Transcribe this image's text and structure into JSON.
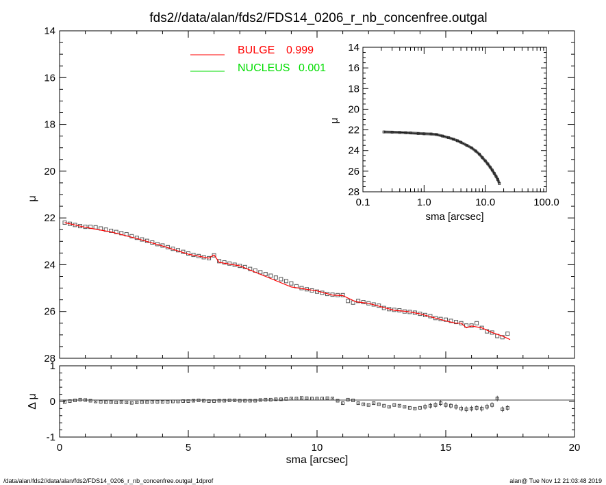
{
  "header": {
    "title": "fds2//data/alan/fds2/FDS14_0206_r_nb_concenfree.outgal"
  },
  "footer": {
    "left": "/data/alan/fds2//data/alan/fds2/FDS14_0206_r_nb_concenfree.outgal_1dprof",
    "right": "alan@  Tue Nov 12 21:03:48 2019"
  },
  "colors": {
    "bulge": "#ff0000",
    "nucleus": "#00dd00",
    "data": "#888888"
  },
  "chart_data": [
    {
      "id": "main",
      "type": "scatter",
      "xlabel": "",
      "ylabel": "μ",
      "xlim": [
        0,
        20
      ],
      "ylim": [
        28,
        14
      ],
      "x_inverted": false,
      "y_inverted": true,
      "x_ticks": [
        "0",
        "5",
        "10",
        "15",
        "20"
      ],
      "y_ticks": [
        "14",
        "16",
        "18",
        "20",
        "22",
        "24",
        "26",
        "28"
      ],
      "legend": {
        "placement": "top-center",
        "entries": [
          {
            "name": "BULGE",
            "value": "0.999",
            "color": "#ff0000"
          },
          {
            "name": "NUCLEUS",
            "value": "0.001",
            "color": "#00dd00"
          }
        ]
      },
      "series": [
        {
          "name": "data",
          "x": [
            0.2,
            0.4,
            0.6,
            0.8,
            1.0,
            1.2,
            1.4,
            1.6,
            1.8,
            2.0,
            2.2,
            2.4,
            2.6,
            2.8,
            3.0,
            3.2,
            3.4,
            3.6,
            3.8,
            4.0,
            4.2,
            4.4,
            4.6,
            4.8,
            5.0,
            5.2,
            5.4,
            5.6,
            5.8,
            6.0,
            6.2,
            6.4,
            6.6,
            6.8,
            7.0,
            7.2,
            7.4,
            7.6,
            7.8,
            8.0,
            8.2,
            8.4,
            8.6,
            8.8,
            9.0,
            9.2,
            9.4,
            9.6,
            9.8,
            10.0,
            10.2,
            10.4,
            10.6,
            10.8,
            11.0,
            11.2,
            11.4,
            11.6,
            11.8,
            12.0,
            12.2,
            12.4,
            12.6,
            12.8,
            13.0,
            13.2,
            13.4,
            13.6,
            13.8,
            14.0,
            14.2,
            14.4,
            14.6,
            14.8,
            15.0,
            15.2,
            15.4,
            15.6,
            15.8,
            16.0,
            16.2,
            16.4,
            16.6,
            16.8,
            17.0,
            17.2,
            17.4
          ],
          "y": [
            22.2,
            22.25,
            22.3,
            22.35,
            22.38,
            22.38,
            22.4,
            22.45,
            22.5,
            22.55,
            22.6,
            22.65,
            22.7,
            22.78,
            22.85,
            22.92,
            22.98,
            23.05,
            23.12,
            23.18,
            23.25,
            23.32,
            23.38,
            23.45,
            23.52,
            23.58,
            23.63,
            23.68,
            23.72,
            23.6,
            23.85,
            23.9,
            23.95,
            24.0,
            24.05,
            24.1,
            24.18,
            24.25,
            24.32,
            24.4,
            24.47,
            24.55,
            24.62,
            24.7,
            24.8,
            24.92,
            25.0,
            25.05,
            25.1,
            25.15,
            25.2,
            25.25,
            25.28,
            25.3,
            25.3,
            25.55,
            25.62,
            25.55,
            25.6,
            25.65,
            25.7,
            25.75,
            25.85,
            25.9,
            25.93,
            25.95,
            26.0,
            26.02,
            26.05,
            26.1,
            26.15,
            26.2,
            26.28,
            26.32,
            26.35,
            26.4,
            26.45,
            26.5,
            26.6,
            26.6,
            26.5,
            26.7,
            26.85,
            26.9,
            27.05,
            27.1,
            26.95
          ]
        },
        {
          "name": "BULGE",
          "x": [
            0.2,
            1.0,
            2.0,
            3.0,
            4.0,
            5.0,
            5.8,
            6.0,
            6.2,
            7.0,
            8.0,
            9.0,
            10.0,
            10.6,
            11.0,
            11.5,
            12.0,
            12.5,
            13.0,
            13.5,
            14.0,
            14.5,
            15.0,
            15.4,
            15.6,
            15.8,
            16.0,
            16.4,
            16.8,
            17.2,
            17.5
          ],
          "y": [
            22.2,
            22.4,
            22.6,
            22.88,
            23.2,
            23.55,
            23.72,
            23.58,
            23.9,
            24.05,
            24.5,
            24.95,
            25.12,
            25.3,
            25.32,
            25.58,
            25.65,
            25.8,
            25.95,
            26.0,
            26.1,
            26.25,
            26.4,
            26.5,
            26.5,
            26.7,
            26.62,
            26.7,
            26.9,
            27.05,
            27.2
          ]
        }
      ]
    },
    {
      "id": "inset",
      "type": "line",
      "xlabel": "sma [arcsec]",
      "ylabel": "μ",
      "xscale": "log",
      "xlim": [
        0.1,
        100.0
      ],
      "ylim": [
        28,
        14
      ],
      "x_ticks": [
        "0.1",
        "1.0",
        "10.0",
        "100.0"
      ],
      "y_ticks": [
        "14",
        "16",
        "18",
        "20",
        "22",
        "24",
        "26",
        "28"
      ],
      "series": [
        {
          "name": "data",
          "x": [
            0.22,
            0.3,
            0.4,
            0.5,
            0.6,
            0.8,
            1.0,
            1.3,
            1.6,
            2.0,
            2.5,
            3.0,
            3.5,
            4.0,
            5.0,
            6.0,
            7.0,
            8.0,
            9.0,
            10.0,
            11.0,
            12.0,
            13.0,
            14.0,
            15.0,
            16.0,
            17.0
          ],
          "y": [
            22.2,
            22.22,
            22.25,
            22.28,
            22.3,
            22.35,
            22.38,
            22.4,
            22.45,
            22.6,
            22.75,
            22.9,
            23.05,
            23.2,
            23.5,
            23.75,
            24.05,
            24.35,
            24.7,
            25.0,
            25.3,
            25.6,
            25.9,
            26.2,
            26.5,
            26.8,
            27.2
          ]
        }
      ]
    },
    {
      "id": "residual",
      "type": "scatter",
      "xlabel": "sma [arcsec]",
      "ylabel": "Δ μ",
      "xlim": [
        0,
        20
      ],
      "ylim": [
        -1,
        1
      ],
      "x_ticks": [
        "0",
        "5",
        "10",
        "15",
        "20"
      ],
      "y_ticks": [
        "1",
        "0",
        "-1"
      ],
      "series": [
        {
          "name": "residual",
          "x": [
            0.2,
            0.4,
            0.6,
            0.8,
            1.0,
            1.2,
            1.4,
            1.6,
            1.8,
            2.0,
            2.2,
            2.4,
            2.6,
            2.8,
            3.0,
            3.2,
            3.4,
            3.6,
            3.8,
            4.0,
            4.2,
            4.4,
            4.6,
            4.8,
            5.0,
            5.2,
            5.4,
            5.6,
            5.8,
            6.0,
            6.2,
            6.4,
            6.6,
            6.8,
            7.0,
            7.2,
            7.4,
            7.6,
            7.8,
            8.0,
            8.2,
            8.4,
            8.6,
            8.8,
            9.0,
            9.2,
            9.4,
            9.6,
            9.8,
            10.0,
            10.2,
            10.4,
            10.6,
            10.8,
            11.0,
            11.2,
            11.4,
            11.6,
            11.8,
            12.0,
            12.2,
            12.4,
            12.6,
            12.8,
            13.0,
            13.2,
            13.4,
            13.6,
            13.8,
            14.0,
            14.2,
            14.4,
            14.6,
            14.8,
            15.0,
            15.2,
            15.4,
            15.6,
            15.8,
            16.0,
            16.2,
            16.4,
            16.6,
            16.8,
            17.0,
            17.2,
            17.4
          ],
          "y": [
            -0.02,
            0.01,
            0.03,
            0.05,
            0.04,
            0.02,
            0.0,
            -0.01,
            -0.02,
            -0.02,
            -0.03,
            -0.02,
            -0.03,
            -0.04,
            -0.03,
            -0.02,
            -0.02,
            -0.01,
            -0.01,
            -0.01,
            -0.01,
            0.0,
            0.0,
            0.01,
            0.01,
            0.02,
            0.03,
            0.02,
            0.01,
            0.01,
            0.02,
            0.02,
            0.03,
            0.03,
            0.02,
            0.02,
            0.02,
            0.02,
            0.04,
            0.05,
            0.05,
            0.06,
            0.06,
            0.07,
            0.08,
            0.08,
            0.1,
            0.09,
            0.08,
            0.08,
            0.08,
            0.09,
            0.08,
            0.02,
            -0.05,
            0.05,
            0.03,
            -0.05,
            -0.08,
            -0.1,
            -0.05,
            -0.08,
            -0.12,
            -0.15,
            -0.1,
            -0.12,
            -0.15,
            -0.18,
            -0.2,
            -0.18,
            -0.15,
            -0.12,
            -0.1,
            -0.05,
            -0.1,
            -0.12,
            -0.15,
            -0.2,
            -0.22,
            -0.2,
            -0.18,
            -0.2,
            -0.15,
            -0.1,
            0.08,
            -0.22,
            -0.18
          ]
        }
      ]
    }
  ]
}
